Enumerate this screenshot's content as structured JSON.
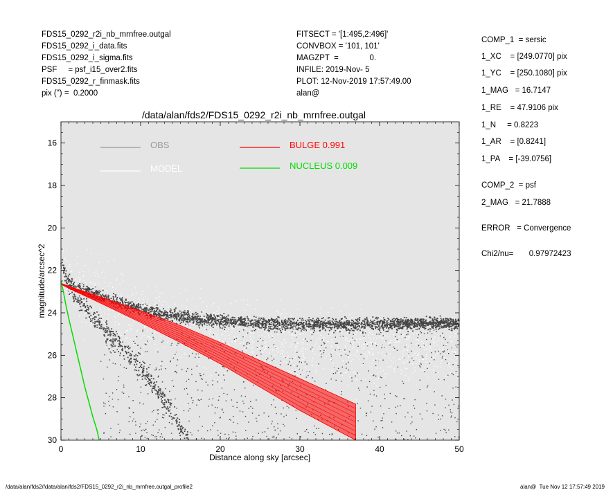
{
  "header": {
    "left": [
      "FDS15_0292_r2i_nb_mrnfree.outgal",
      "FDS15_0292_i_data.fits",
      "FDS15_0292_i_sigma.fits",
      "PSF     = psf_i15_over2.fits",
      "FDS15_0292_r_finmask.fits",
      "pix (\") =  0.2000"
    ],
    "middle": [
      "FITSECT = '[1:495,2:496]'",
      "CONVBOX = '101, 101'",
      "MAGZPT  =              0.",
      "INFILE: 2019-Nov- 5",
      "PLOT: 12-Nov-2019 17:57:49.00",
      "alan@"
    ]
  },
  "params": [
    "COMP_1  = sersic",
    "1_XC    = [249.0770] pix",
    "1_YC    = [250.1080] pix",
    "1_MAG   = 16.7147",
    "1_RE    = 47.9106 pix",
    "1_N     = 0.8223",
    "1_AR    = [0.8241]",
    "1_PA    = [-39.0756]",
    "COMP_2  = psf",
    "2_MAG   = 21.7888",
    "ERROR   = Convergence",
    "Chi2/nu=       0.97972423"
  ],
  "footer": {
    "left": "/data/alan/fds2//data/alan/fds2/FDS15_0292_r2i_nb_mrnfree.outgal_profile2",
    "right": "alan@  Tue Nov 12 17:57:49 2019"
  },
  "colors": {
    "plot_bg": "#e5e5e5",
    "obs": "#444444",
    "model": "#ffffff",
    "obs_legend": "#999999",
    "bulge": "#ff0000",
    "nucleus": "#00dd00"
  },
  "chart_data": {
    "type": "scatter",
    "title": "/data/alan/fds2/FDS15_0292_r2i_nb_mrnfree.outgal",
    "xlabel": "Distance along sky [arcsec]",
    "ylabel": "magnitude/arcsec^2",
    "xlim": [
      0,
      50
    ],
    "ylim": [
      30,
      15
    ],
    "y_inverted": true,
    "xticks": [
      0,
      10,
      20,
      30,
      40,
      50
    ],
    "yticks": [
      16,
      18,
      20,
      22,
      24,
      26,
      28,
      30
    ],
    "legend": [
      {
        "name": "OBS",
        "color": "#999999"
      },
      {
        "name": "MODEL",
        "color": "#ffffff"
      },
      {
        "name": "BULGE  0.991",
        "color": "#ff0000"
      },
      {
        "name": "NUCLEUS  0.009",
        "color": "#00dd00"
      }
    ],
    "series": [
      {
        "name": "OBS",
        "kind": "points",
        "x": [
          0.0,
          0.2,
          0.5,
          1.0,
          2.0,
          3.0,
          5.0,
          8.0,
          12.0,
          16.0,
          20.0,
          25.0,
          30.0,
          40.0,
          50.0
        ],
        "y": [
          21.7,
          21.8,
          22.2,
          22.5,
          22.8,
          22.95,
          23.2,
          23.6,
          24.0,
          24.25,
          24.4,
          24.5,
          24.55,
          24.55,
          24.5
        ]
      },
      {
        "name": "OBS steep branch",
        "kind": "points",
        "x": [
          0.5,
          2.0,
          4.0,
          6.0,
          8.0,
          10.0,
          12.0,
          14.0,
          16.0
        ],
        "y": [
          22.5,
          23.3,
          24.2,
          25.0,
          25.8,
          26.6,
          27.6,
          28.8,
          30.0
        ]
      },
      {
        "name": "MODEL",
        "kind": "points",
        "x": [
          0.0,
          1.0,
          2.0,
          5.0,
          10.0,
          20.0,
          30.0,
          40.0,
          50.0
        ],
        "y": [
          22.4,
          22.6,
          22.8,
          23.3,
          24.2,
          25.1,
          25.5,
          25.7,
          25.8
        ]
      },
      {
        "name": "BULGE  0.991",
        "kind": "band",
        "x": [
          0.0,
          1.0,
          5.0,
          10.0,
          15.0,
          20.0,
          25.0,
          30.0,
          37.0
        ],
        "y_upper": [
          22.6,
          22.75,
          23.25,
          23.9,
          24.6,
          25.4,
          26.25,
          27.1,
          28.3
        ],
        "y_lower": [
          22.65,
          22.85,
          23.55,
          24.45,
          25.4,
          26.4,
          27.5,
          28.6,
          30.0
        ]
      },
      {
        "name": "NUCLEUS  0.009",
        "kind": "line",
        "x": [
          0.0,
          0.3,
          0.6,
          1.0,
          1.5,
          2.0,
          2.5,
          3.0,
          3.5,
          4.0,
          4.5,
          4.8
        ],
        "y": [
          22.5,
          23.0,
          23.6,
          24.3,
          25.1,
          25.9,
          26.7,
          27.5,
          28.2,
          28.9,
          29.5,
          30.0
        ]
      }
    ]
  }
}
